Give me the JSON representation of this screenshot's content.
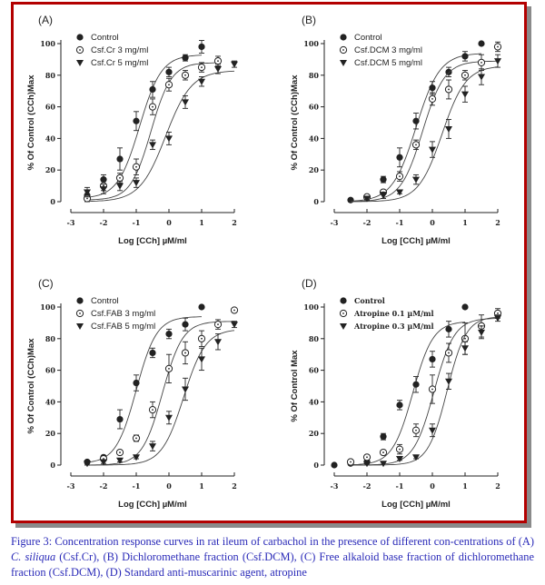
{
  "caption": {
    "lead": "Figure 3: Concentration response curves in rat ileum of carbachol in the presence of different con-centrations of (A) ",
    "species": "C. siliqua",
    "rest": " (Csf.Cr), (B) Dichloromethane fraction (Csf.DCM), (C) Free alkaloid base fraction of dichloromethane fraction (Csf.DCM), (D) Standard anti-muscarinic agent, atropine"
  },
  "colors": {
    "frame": "#b30000",
    "shadow": "#8a8a8a",
    "caption": "#2a2ab8",
    "ink": "#222222"
  },
  "chart_data": [
    {
      "id": "A",
      "type": "scatter",
      "title": "(A)",
      "xlabel": "Log [CCh]  µM/ml",
      "ylabel": "% Of Control (CCh)Max",
      "xlim": [
        -3,
        2
      ],
      "ylim": [
        0,
        100
      ],
      "xticks": [
        "-3",
        "-2",
        "-1",
        "0",
        "1",
        "2"
      ],
      "yticks": [
        "0",
        "20",
        "40",
        "60",
        "80",
        "100"
      ],
      "legend_position": "top-left",
      "legend_style": "sans",
      "series": [
        {
          "name": "Control",
          "marker": "filled-circle",
          "x": [
            -2.5,
            -2,
            -1.5,
            -1,
            -0.5,
            0,
            0.5,
            1
          ],
          "y": [
            4,
            14,
            27,
            51,
            71,
            82,
            91,
            98
          ],
          "err": [
            3,
            3,
            7,
            6,
            5,
            3,
            2,
            4
          ],
          "fit": {
            "bottom": 2,
            "top": 93,
            "logec50": -0.9,
            "hill": 1.3,
            "xmax": 1
          }
        },
        {
          "name": "Csf.Cr 3 mg/ml",
          "marker": "dotted-circle",
          "x": [
            -2.5,
            -2,
            -1.5,
            -1,
            -0.5,
            0,
            0.5,
            1,
            1.5
          ],
          "y": [
            2,
            10,
            15,
            22,
            60,
            74,
            80,
            85,
            89
          ],
          "err": [
            2,
            3,
            3,
            5,
            5,
            4,
            3,
            3,
            3
          ],
          "fit": {
            "bottom": 1,
            "top": 88,
            "logec50": -0.55,
            "hill": 1.4,
            "xmax": 1.5
          }
        },
        {
          "name": "Csf.Cr 5 mg/ml",
          "marker": "filled-triangle-down",
          "x": [
            -2.5,
            -2,
            -1.5,
            -1,
            -0.5,
            0,
            0.5,
            1,
            1.5,
            2
          ],
          "y": [
            6,
            8,
            10,
            12,
            36,
            40,
            63,
            76,
            84,
            87
          ],
          "err": [
            3,
            3,
            3,
            3,
            3,
            4,
            4,
            3,
            3,
            2
          ],
          "fit": {
            "bottom": 0,
            "top": 83,
            "logec50": -0.1,
            "hill": 1.1,
            "xmax": 2
          }
        }
      ]
    },
    {
      "id": "B",
      "type": "scatter",
      "title": "(B)",
      "xlabel": "Log [CCh]  µM/ml",
      "ylabel": "% Of Control (CCh)Max",
      "xlim": [
        -3,
        2
      ],
      "ylim": [
        0,
        100
      ],
      "xticks": [
        "-3",
        "-2",
        "-1",
        "0",
        "1",
        "2"
      ],
      "yticks": [
        "0",
        "20",
        "40",
        "60",
        "80",
        "100"
      ],
      "legend_position": "top-left",
      "legend_style": "sans",
      "series": [
        {
          "name": "Control",
          "marker": "filled-circle",
          "x": [
            -2.5,
            -2,
            -1.5,
            -1,
            -0.5,
            0,
            0.5,
            1,
            1.5
          ],
          "y": [
            1,
            3,
            14,
            28,
            51,
            72,
            82,
            92,
            100
          ],
          "err": [
            1,
            1,
            2,
            6,
            5,
            4,
            3,
            3,
            0
          ],
          "fit": {
            "bottom": 0,
            "top": 94,
            "logec50": -0.5,
            "hill": 1.2,
            "xmax": 1.5
          }
        },
        {
          "name": "Csf.DCM 3 mg/ml",
          "marker": "dotted-circle",
          "x": [
            -2,
            -1.5,
            -1,
            -0.5,
            0,
            0.5,
            1,
            1.5,
            2
          ],
          "y": [
            3,
            6,
            16,
            36,
            65,
            71,
            80,
            88,
            98
          ],
          "err": [
            1,
            1,
            3,
            3,
            4,
            6,
            3,
            5,
            3
          ],
          "fit": {
            "bottom": 0,
            "top": 89,
            "logec50": -0.3,
            "hill": 1.3,
            "xmax": 2
          }
        },
        {
          "name": "Csf.DCM 5 mg/ml",
          "marker": "filled-triangle-down",
          "x": [
            -2,
            -1.5,
            -1,
            -0.5,
            0,
            0.5,
            1,
            1.5,
            2
          ],
          "y": [
            2,
            4,
            6,
            14,
            33,
            46,
            68,
            79,
            89
          ],
          "err": [
            1,
            2,
            1,
            3,
            5,
            6,
            5,
            5,
            4
          ],
          "fit": {
            "bottom": 0,
            "top": 86,
            "logec50": 0.3,
            "hill": 1.2,
            "xmax": 2
          }
        }
      ]
    },
    {
      "id": "C",
      "type": "scatter",
      "title": "(C)",
      "xlabel": "Log [CCh]  µM/ml",
      "ylabel": "% Of Control (CCh)Max",
      "xlim": [
        -3,
        2
      ],
      "ylim": [
        0,
        100
      ],
      "xticks": [
        "-3",
        "-2",
        "-1",
        "0",
        "1",
        "2"
      ],
      "yticks": [
        "0",
        "20",
        "40",
        "60",
        "80",
        "100"
      ],
      "legend_position": "top-left",
      "legend_style": "sans",
      "series": [
        {
          "name": "Control",
          "marker": "filled-circle",
          "x": [
            -2.5,
            -2,
            -1.5,
            -1,
            -0.5,
            0,
            0.5,
            1
          ],
          "y": [
            2,
            5,
            29,
            52,
            71,
            83,
            89,
            100
          ],
          "err": [
            1,
            1,
            6,
            5,
            3,
            3,
            4,
            0
          ],
          "fit": {
            "bottom": 1,
            "top": 94,
            "logec50": -1.0,
            "hill": 1.4,
            "xmax": 1
          }
        },
        {
          "name": "Csf.FAB 3 mg/ml",
          "marker": "dotted-circle",
          "x": [
            -2,
            -1.5,
            -1,
            -0.5,
            0,
            0.5,
            1,
            1.5,
            2
          ],
          "y": [
            4,
            8,
            17,
            35,
            61,
            71,
            80,
            89,
            98
          ],
          "err": [
            1,
            1,
            2,
            5,
            9,
            7,
            5,
            3,
            0
          ],
          "fit": {
            "bottom": 0,
            "top": 91,
            "logec50": -0.2,
            "hill": 1.4,
            "xmax": 2
          }
        },
        {
          "name": "Csf.FAB 5 mg/ml",
          "marker": "filled-triangle-down",
          "x": [
            -2.5,
            -2,
            -1.5,
            -1,
            -0.5,
            0,
            0.5,
            1,
            1.5,
            2
          ],
          "y": [
            1,
            2,
            3,
            5,
            12,
            30,
            48,
            67,
            78,
            89
          ],
          "err": [
            1,
            1,
            1,
            1,
            3,
            4,
            7,
            7,
            5,
            2
          ],
          "fit": {
            "bottom": 0,
            "top": 86,
            "logec50": 0.45,
            "hill": 1.3,
            "xmax": 2
          }
        }
      ]
    },
    {
      "id": "D",
      "type": "scatter",
      "title": "(D)",
      "xlabel": "Log [CCh]  µM/ml",
      "ylabel": "% Of Control Max",
      "xlim": [
        -3,
        2
      ],
      "ylim": [
        0,
        100
      ],
      "xticks": [
        "-3",
        "-2",
        "-1",
        "0",
        "1",
        "2"
      ],
      "yticks": [
        "0",
        "20",
        "40",
        "60",
        "80",
        "100"
      ],
      "legend_position": "top-left",
      "legend_style": "serif",
      "series": [
        {
          "name": "Control",
          "marker": "filled-circle",
          "x": [
            -3,
            -2.5,
            -2,
            -1.5,
            -1,
            -0.5,
            0,
            0.5,
            1
          ],
          "y": [
            0,
            1,
            2,
            18,
            38,
            51,
            67,
            86,
            100
          ],
          "err": [
            0,
            0,
            1,
            2,
            3,
            5,
            5,
            5,
            0
          ],
          "fit": {
            "bottom": 0,
            "top": 91,
            "logec50": -0.6,
            "hill": 1.4,
            "xmax": 1
          }
        },
        {
          "name": "Atropine 0.1 µM/ml",
          "marker": "dotted-circle",
          "x": [
            -2.5,
            -2,
            -1.5,
            -1,
            -0.5,
            0,
            0.5,
            1,
            1.5,
            2
          ],
          "y": [
            2,
            5,
            8,
            10,
            22,
            48,
            71,
            80,
            88,
            96
          ],
          "err": [
            1,
            1,
            1,
            3,
            4,
            9,
            6,
            10,
            7,
            3
          ],
          "fit": {
            "bottom": 0,
            "top": 93,
            "logec50": 0.05,
            "hill": 1.4,
            "xmax": 2
          }
        },
        {
          "name": "Atropine 0.3 µM/ml",
          "marker": "filled-triangle-down",
          "x": [
            -2,
            -1.5,
            -1,
            -0.5,
            0,
            0.5,
            1,
            1.5,
            2
          ],
          "y": [
            1,
            1,
            4,
            5,
            22,
            53,
            74,
            84,
            93
          ],
          "err": [
            0,
            0,
            1,
            1,
            4,
            5,
            4,
            4,
            2
          ],
          "fit": {
            "bottom": 0,
            "top": 94,
            "logec50": 0.45,
            "hill": 1.5,
            "xmax": 2
          }
        }
      ]
    }
  ]
}
